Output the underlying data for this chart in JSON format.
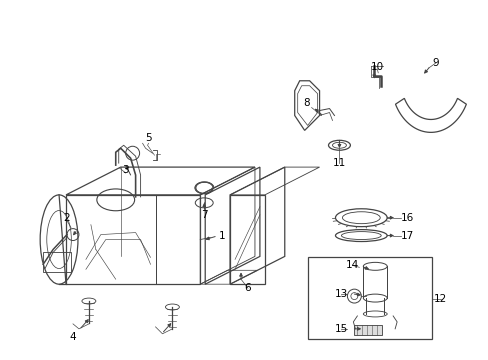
{
  "background_color": "#ffffff",
  "line_color": "#444444",
  "text_color": "#000000",
  "figsize": [
    4.89,
    3.6
  ],
  "dpi": 100
}
